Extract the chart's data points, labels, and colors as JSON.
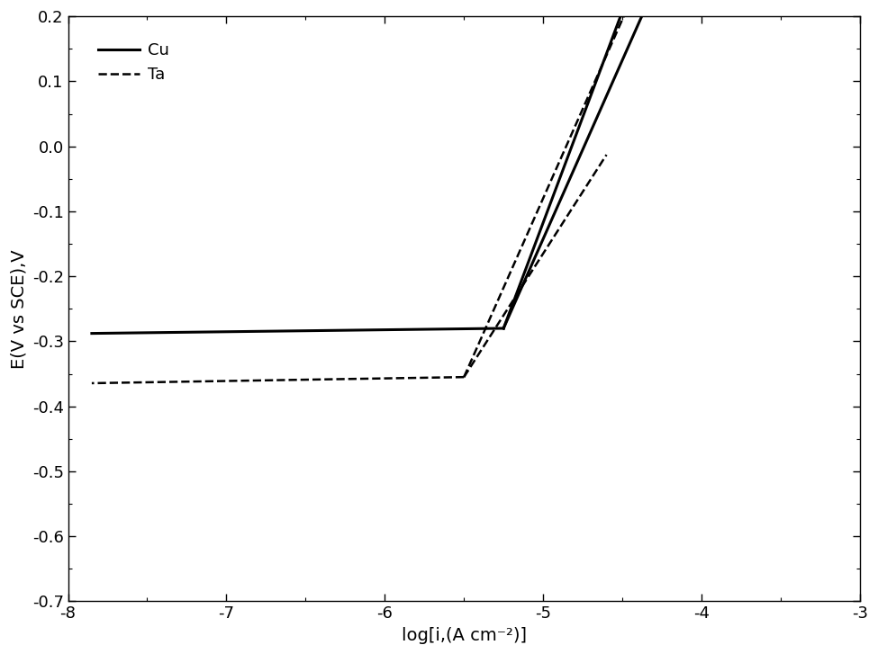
{
  "title": "",
  "xlabel": "log[i,(A cm⁻²)]",
  "ylabel": "E(V vs SCE),V",
  "xlim": [
    -8,
    -3
  ],
  "ylim": [
    -0.7,
    0.2
  ],
  "xticks": [
    -8,
    -7,
    -6,
    -5,
    -4,
    -3
  ],
  "yticks": [
    -0.7,
    -0.6,
    -0.5,
    -0.4,
    -0.3,
    -0.2,
    -0.1,
    0.0,
    0.1,
    0.2
  ],
  "Cu_Ecorr": -0.28,
  "Cu_logicorr": -5.25,
  "Cu_ba": 0.65,
  "Cu_bc": 0.55,
  "Ta_Ecorr": -0.355,
  "Ta_logicorr": -5.5,
  "Ta_ba": 0.55,
  "Ta_bc": 0.38,
  "line_color": "#000000",
  "linewidth_solid": 2.2,
  "linewidth_dashed": 1.8,
  "legend_Cu": "Cu",
  "legend_Ta": "Ta",
  "background_color": "#ffffff"
}
